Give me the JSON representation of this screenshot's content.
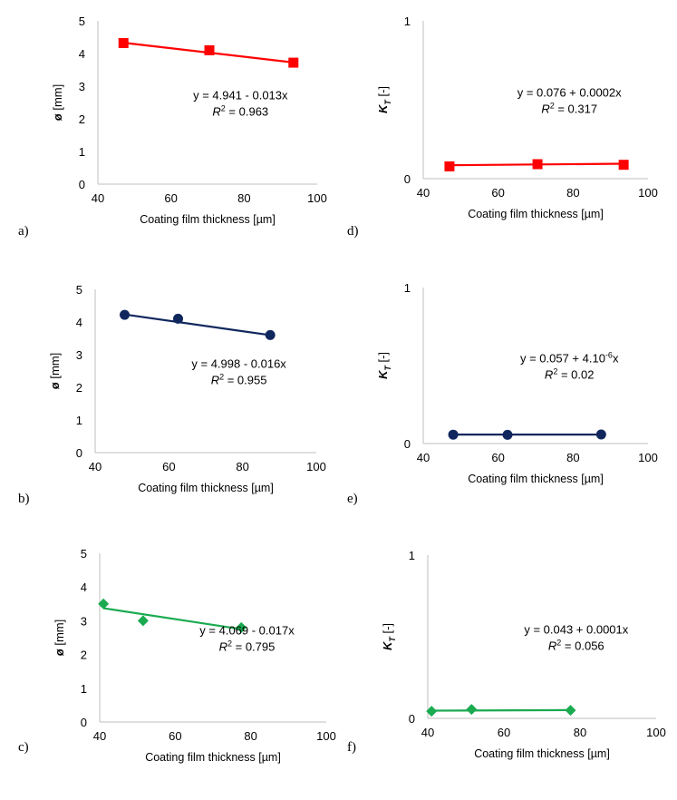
{
  "xlabel": "Coating film thickness [µm]",
  "chart_data": [
    {
      "panel": "a)",
      "type": "scatter",
      "color": "#ff0000",
      "marker": "square",
      "ylabel_main": "ø",
      "ylabel_sub": "",
      "ylabel_rest": " [mm]",
      "xlim": [
        40,
        100
      ],
      "ylim": [
        0,
        5
      ],
      "xticks": [
        "40",
        "60",
        "80",
        "100"
      ],
      "yticks": [
        "0",
        "1",
        "2",
        "3",
        "4",
        "5"
      ],
      "x": [
        47,
        70.5,
        93.5
      ],
      "y": [
        4.32,
        4.1,
        3.72
      ],
      "eq": "y = 4.941 - 0.013x",
      "r2_value": " = 0.963",
      "fit": [
        4.941,
        -0.013
      ]
    },
    {
      "panel": "b)",
      "type": "scatter",
      "color": "#10275e",
      "marker": "circle",
      "ylabel_main": "ø",
      "ylabel_sub": "",
      "ylabel_rest": " [mm]",
      "xlim": [
        40,
        100
      ],
      "ylim": [
        0,
        5
      ],
      "xticks": [
        "40",
        "60",
        "80",
        "100"
      ],
      "yticks": [
        "0",
        "1",
        "2",
        "3",
        "4",
        "5"
      ],
      "x": [
        48,
        62.5,
        87.5
      ],
      "y": [
        4.22,
        4.1,
        3.6
      ],
      "eq": "y = 4.998 - 0.016x",
      "r2_value": " = 0.955",
      "fit": [
        4.998,
        -0.016
      ]
    },
    {
      "panel": "c)",
      "type": "scatter",
      "color": "#1aaa50",
      "marker": "diamond",
      "ylabel_main": "ø",
      "ylabel_sub": "",
      "ylabel_rest": " [mm]",
      "xlim": [
        40,
        100
      ],
      "ylim": [
        0,
        5
      ],
      "xticks": [
        "40",
        "60",
        "80",
        "100"
      ],
      "yticks": [
        "0",
        "1",
        "2",
        "3",
        "4",
        "5"
      ],
      "x": [
        41,
        51.5,
        77.5
      ],
      "y": [
        3.5,
        3.0,
        2.8
      ],
      "eq": "y = 4.069 - 0.017x",
      "r2_value": " = 0.795",
      "fit": [
        4.069,
        -0.017
      ]
    },
    {
      "panel": "d)",
      "type": "scatter",
      "color": "#ff0000",
      "marker": "square",
      "ylabel_main": "K",
      "ylabel_sub": "T",
      "ylabel_rest": " [-]",
      "xlim": [
        40,
        100
      ],
      "ylim": [
        0,
        1
      ],
      "xticks": [
        "40",
        "60",
        "80",
        "100"
      ],
      "yticks": [
        "0",
        "",
        "1"
      ],
      "x": [
        47,
        70.5,
        93.5
      ],
      "y": [
        0.078,
        0.092,
        0.088
      ],
      "eq": "y = 0.076 + 0.0002x",
      "r2_value": " = 0.317",
      "fit": [
        0.076,
        0.0002
      ]
    },
    {
      "panel": "e)",
      "type": "scatter",
      "color": "#10275e",
      "marker": "circle",
      "ylabel_main": "K",
      "ylabel_sub": "T",
      "ylabel_rest": " [-]",
      "xlim": [
        40,
        100
      ],
      "ylim": [
        0,
        1
      ],
      "xticks": [
        "40",
        "60",
        "80",
        "100"
      ],
      "yticks": [
        "0",
        "",
        "1"
      ],
      "x": [
        48,
        62.5,
        87.5
      ],
      "y": [
        0.057,
        0.056,
        0.058
      ],
      "eq": "y = 0.057 + 4.10",
      "eq_sup": "-6",
      "eq_tail": "x",
      "r2_value": " = 0.02",
      "fit": [
        0.057,
        4e-06
      ]
    },
    {
      "panel": "f)",
      "type": "scatter",
      "color": "#1aaa50",
      "marker": "diamond",
      "ylabel_main": "K",
      "ylabel_sub": "T",
      "ylabel_rest": " [-]",
      "xlim": [
        40,
        100
      ],
      "ylim": [
        0,
        1
      ],
      "xticks": [
        "40",
        "60",
        "80",
        "100"
      ],
      "yticks": [
        "0",
        "",
        "1"
      ],
      "x": [
        41,
        51.5,
        77.5
      ],
      "y": [
        0.044,
        0.055,
        0.049
      ],
      "eq": "y = 0.043 + 0.0001x",
      "r2_value": " = 0.056",
      "fit": [
        0.043,
        0.0001
      ]
    }
  ]
}
